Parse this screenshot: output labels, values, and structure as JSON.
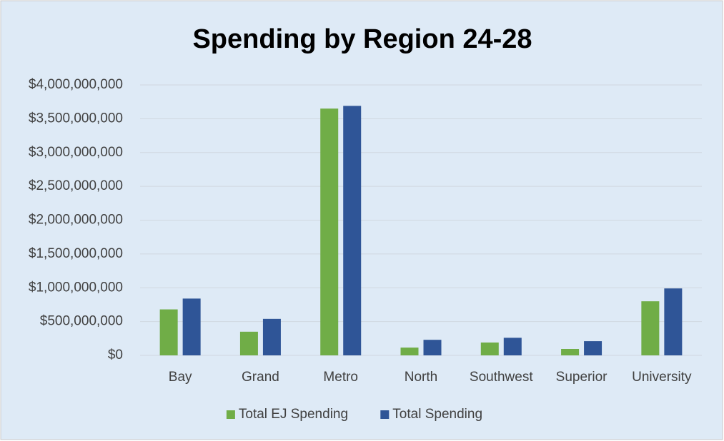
{
  "chart_data": {
    "type": "bar",
    "title": "Spending by Region 24-28",
    "categories": [
      "Bay",
      "Grand",
      "Metro",
      "North",
      "Southwest",
      "Superior",
      "University"
    ],
    "series": [
      {
        "name": "Total EJ Spending",
        "color": "#70ad47",
        "values": [
          680000000,
          350000000,
          3650000000,
          115000000,
          190000000,
          95000000,
          800000000
        ]
      },
      {
        "name": "Total Spending",
        "color": "#2f5597",
        "values": [
          840000000,
          540000000,
          3690000000,
          230000000,
          260000000,
          210000000,
          990000000
        ]
      }
    ],
    "ylim": [
      0,
      4000000000
    ],
    "yticks": [
      {
        "value": 0,
        "label": "$0"
      },
      {
        "value": 500000000,
        "label": "$500,000,000"
      },
      {
        "value": 1000000000,
        "label": "$1,000,000,000"
      },
      {
        "value": 1500000000,
        "label": "$1,500,000,000"
      },
      {
        "value": 2000000000,
        "label": "$2,000,000,000"
      },
      {
        "value": 2500000000,
        "label": "$2,500,000,000"
      },
      {
        "value": 3000000000,
        "label": "$3,000,000,000"
      },
      {
        "value": 3500000000,
        "label": "$3,500,000,000"
      },
      {
        "value": 4000000000,
        "label": "$4,000,000,000"
      }
    ],
    "grid": true,
    "legend": "bottom"
  }
}
